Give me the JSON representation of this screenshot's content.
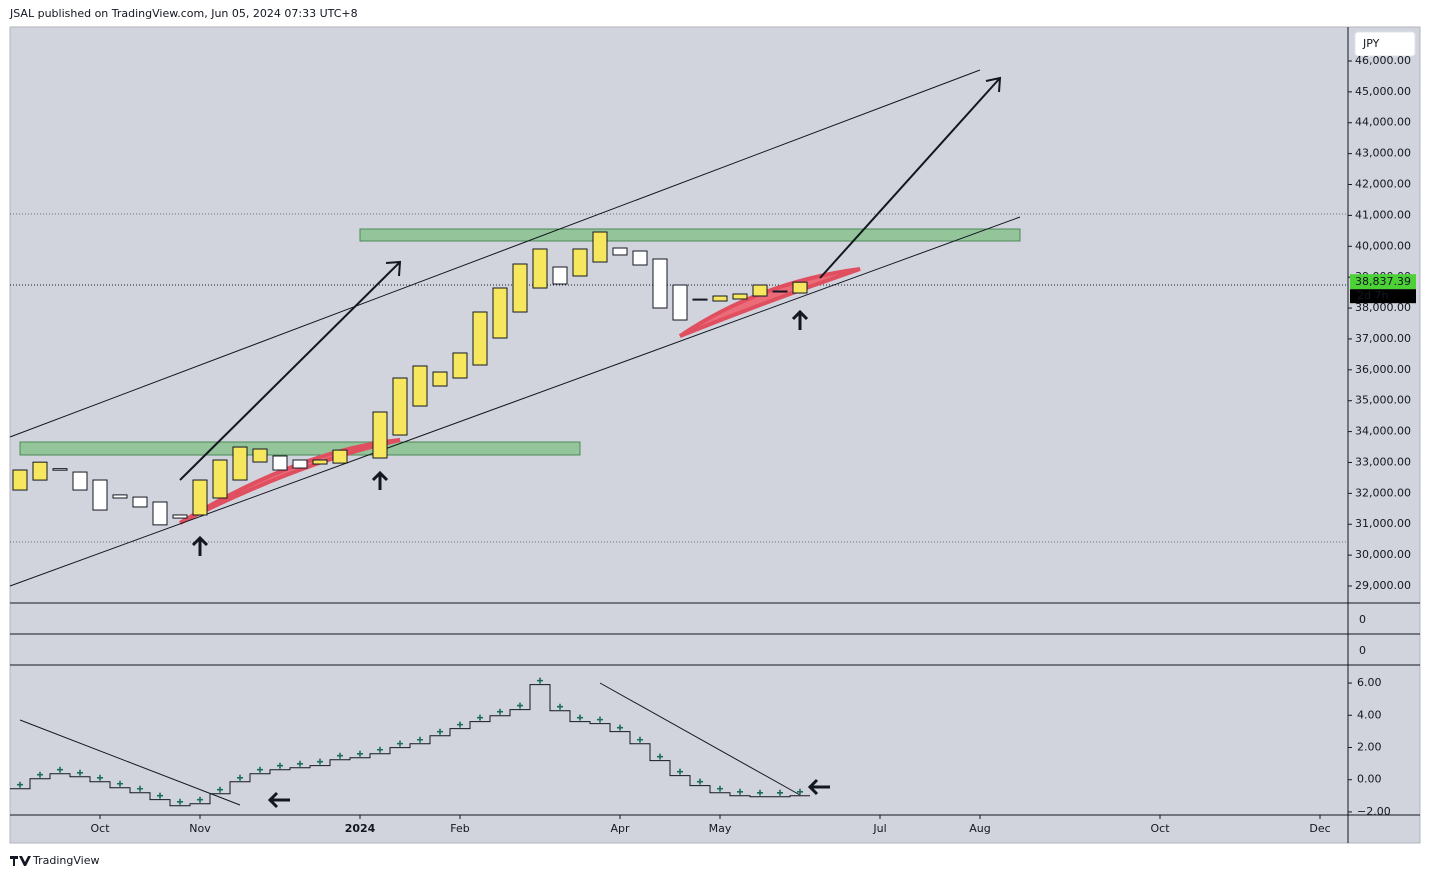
{
  "header": {
    "text": "JSAL published on TradingView.com, Jun 05, 2024 07:33 UTC+8"
  },
  "footer": {
    "text": "TradingView"
  },
  "currency": "JPY",
  "last_price": {
    "value": 38837.39,
    "label": "38,837.39"
  },
  "countdown": "2d 7h",
  "empty_panes": [
    {
      "yticks": [
        0
      ]
    },
    {
      "yticks": [
        0
      ]
    }
  ],
  "chart_data": [
    {
      "type": "candlestick",
      "x": [
        0,
        1,
        2,
        3,
        4,
        5,
        6,
        7,
        8,
        9,
        10,
        11,
        12,
        13,
        14,
        15,
        16,
        18,
        19,
        20,
        21,
        22,
        23,
        24,
        25,
        26,
        27,
        28,
        29,
        30,
        31,
        32,
        33,
        34,
        35,
        36,
        37,
        38,
        39
      ],
      "open": [
        32108,
        32430,
        32800,
        32690,
        32432,
        31950,
        31880,
        31720,
        31300,
        31300,
        31850,
        32432,
        33015,
        33210,
        33080,
        32950,
        32980,
        33145,
        33889,
        34828,
        35476,
        35735,
        36156,
        37030,
        37872,
        38649,
        39329,
        39038,
        39491,
        39944,
        39847,
        39588,
        38746,
        38290,
        38228,
        38293,
        38390,
        38520,
        38487
      ],
      "close": [
        32756,
        33010,
        32750,
        32108,
        31460,
        31850,
        31560,
        30980,
        31200,
        32432,
        33080,
        33500,
        33436,
        32756,
        32820,
        33080,
        33400,
        34634,
        35735,
        36124,
        35929,
        36545,
        37872,
        38649,
        39426,
        39912,
        38779,
        39912,
        40462,
        39718,
        39394,
        38002,
        37613,
        38261,
        38390,
        38455,
        38746,
        38552,
        38837.39
      ],
      "up_color": "#f7e75e",
      "down_color": "#ffffff",
      "xlim": [
        -0.5,
        66.4
      ],
      "xticks": [
        {
          "value": 4,
          "label": "Oct"
        },
        {
          "value": 9,
          "label": "Nov"
        },
        {
          "value": 17,
          "label": "2024"
        },
        {
          "value": 22,
          "label": "Feb"
        },
        {
          "value": 30,
          "label": "Apr"
        },
        {
          "value": 35,
          "label": "May"
        },
        {
          "value": 43,
          "label": "Jul"
        },
        {
          "value": 48,
          "label": "Aug"
        },
        {
          "value": 57,
          "label": "Oct"
        },
        {
          "value": 65,
          "label": "Dec"
        }
      ],
      "ylim": [
        28450,
        47100
      ],
      "yticks": [
        {
          "value": 29000,
          "label": "29,000.00"
        },
        {
          "value": 30000,
          "label": "30,000.00"
        },
        {
          "value": 31000,
          "label": "31,000.00"
        },
        {
          "value": 32000,
          "label": "32,000.00"
        },
        {
          "value": 33000,
          "label": "33,000.00"
        },
        {
          "value": 34000,
          "label": "34,000.00"
        },
        {
          "value": 35000,
          "label": "35,000.00"
        },
        {
          "value": 36000,
          "label": "36,000.00"
        },
        {
          "value": 37000,
          "label": "37,000.00"
        },
        {
          "value": 38000,
          "label": "38,000.00"
        },
        {
          "value": 39000,
          "label": "39,000.00"
        },
        {
          "value": 40000,
          "label": "40,000.00"
        },
        {
          "value": 41000,
          "label": "41,000.00"
        },
        {
          "value": 42000,
          "label": "42,000.00"
        },
        {
          "value": 43000,
          "label": "43,000.00"
        },
        {
          "value": 44000,
          "label": "44,000.00"
        },
        {
          "value": 45000,
          "label": "45,000.00"
        },
        {
          "value": 46000,
          "label": "46,000.00"
        }
      ]
    },
    {
      "type": "scatter",
      "x": [
        0,
        1,
        2,
        3,
        4,
        5,
        6,
        7,
        8,
        9,
        10,
        11,
        12,
        13,
        14,
        15,
        16,
        17,
        18,
        19,
        20,
        21,
        22,
        23,
        24,
        25,
        26,
        27,
        28,
        29,
        30,
        31,
        32,
        33,
        34,
        35,
        36,
        37,
        38,
        39
      ],
      "values": [
        -0.31,
        0.31,
        0.62,
        0.43,
        0.12,
        -0.25,
        -0.56,
        -0.99,
        -1.37,
        -1.24,
        -0.62,
        0.12,
        0.62,
        0.87,
        0.99,
        1.12,
        1.49,
        1.61,
        1.86,
        2.24,
        2.48,
        2.98,
        3.42,
        3.85,
        4.22,
        4.6,
        6.15,
        4.53,
        3.85,
        3.73,
        3.23,
        2.48,
        1.43,
        0.5,
        -0.12,
        -0.56,
        -0.75,
        -0.81,
        -0.81,
        -0.75
      ],
      "color": "#1b6e5c",
      "xlim": [
        -0.5,
        66.4
      ],
      "ylim": [
        -2.19,
        7.12
      ],
      "yticks": [
        {
          "value": 6,
          "label": "6.00"
        },
        {
          "value": 4,
          "label": "4.00"
        },
        {
          "value": 2,
          "label": "2.00"
        },
        {
          "value": 0,
          "label": "0.00"
        },
        {
          "value": -2,
          "label": "−2.00"
        }
      ]
    }
  ]
}
